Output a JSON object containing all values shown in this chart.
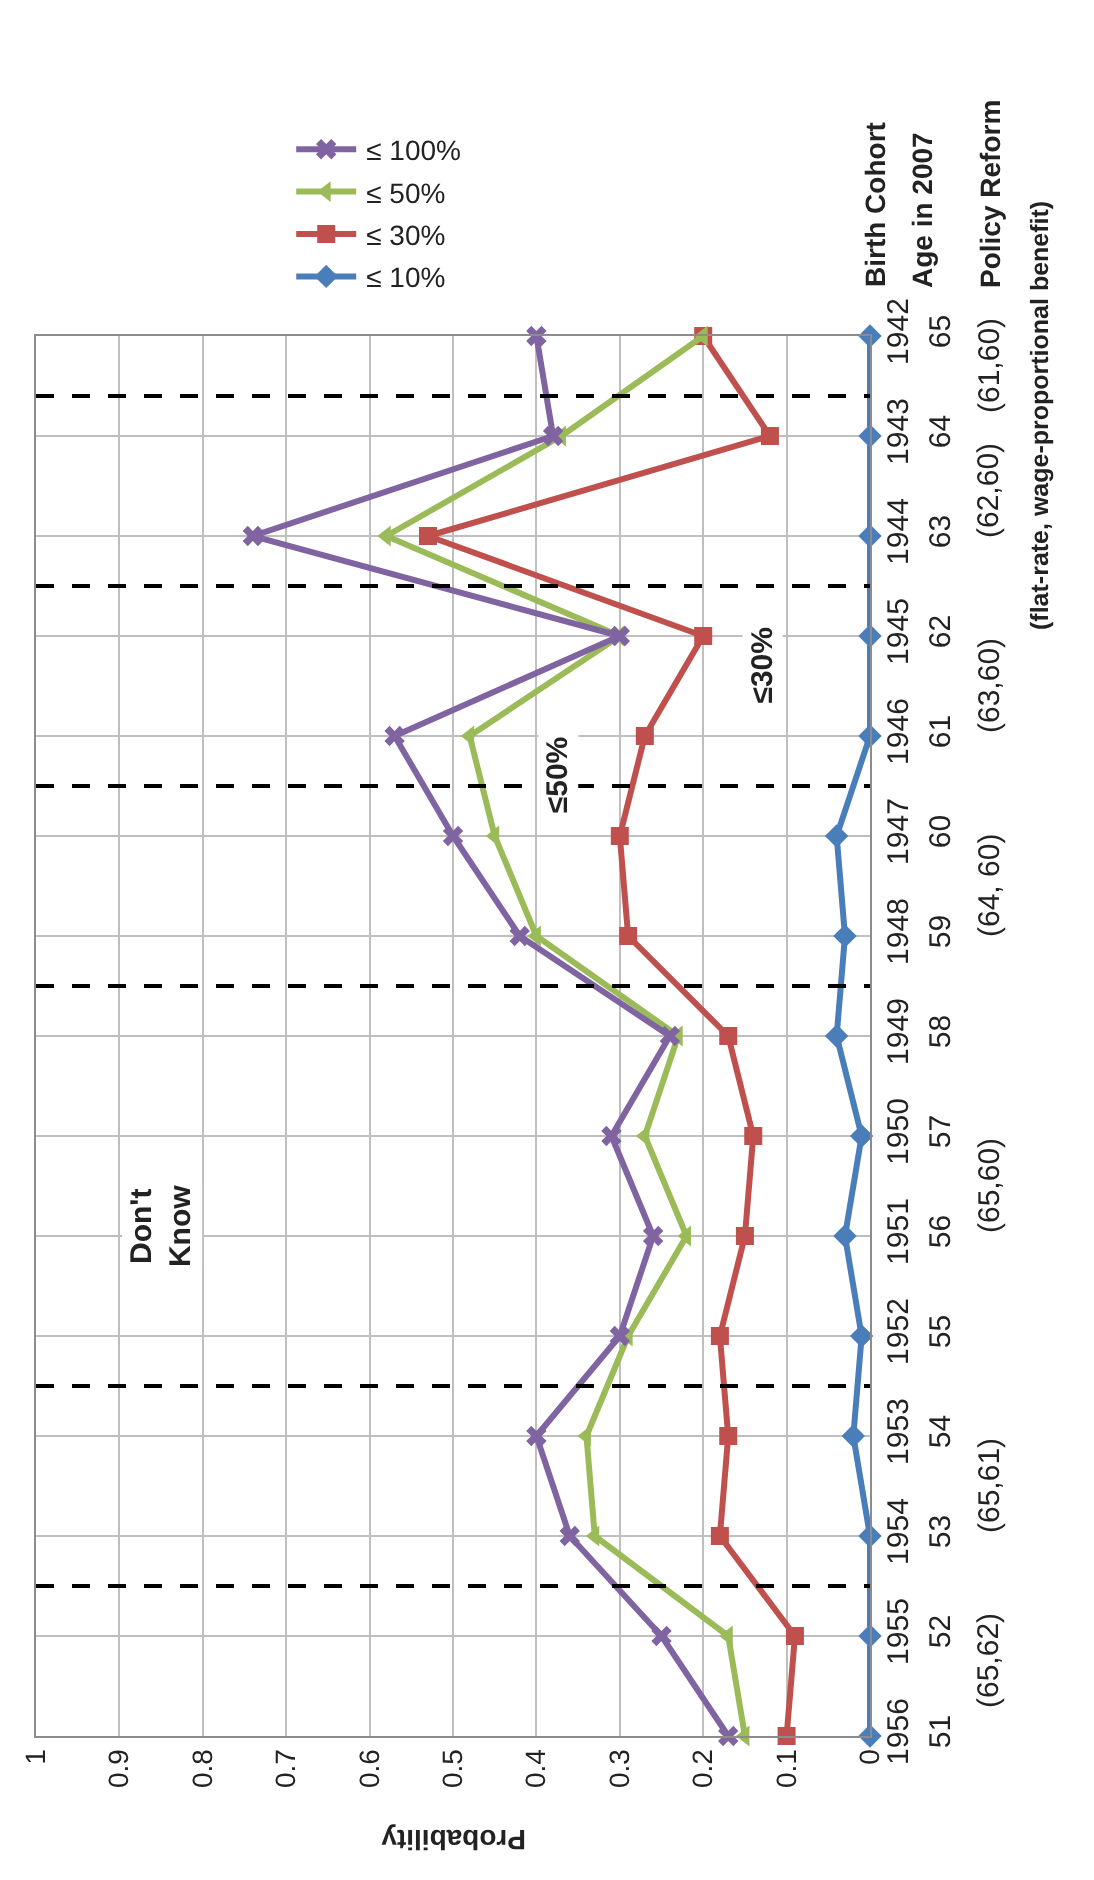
{
  "chart_data": {
    "type": "line",
    "orientation": "horizontal",
    "x": [
      1956,
      1955,
      1954,
      1953,
      1952,
      1951,
      1950,
      1949,
      1948,
      1947,
      1946,
      1945,
      1944,
      1943,
      1942
    ],
    "ylim": [
      1956,
      1942
    ],
    "yticks": [
      1956,
      1955,
      1954,
      1953,
      1952,
      1951,
      1950,
      1949,
      1948,
      1947,
      1946,
      1945,
      1944,
      1943,
      1942
    ],
    "y2lim": [
      51,
      65
    ],
    "y2ticks": [
      51,
      52,
      53,
      54,
      55,
      56,
      57,
      58,
      59,
      60,
      61,
      62,
      63,
      64,
      65
    ],
    "ylabel": "Birth Cohort",
    "y2label": "Age in 2007",
    "xlabel": "Probability",
    "xlim": [
      1,
      0
    ],
    "xticks": [
      0,
      0.1,
      0.2,
      0.3,
      0.4,
      0.5,
      0.6,
      0.7,
      0.8,
      0.9,
      1
    ],
    "grid": true,
    "legend": "top left",
    "series": [
      {
        "name": "≤ 10%",
        "color": "#4a7ebb",
        "marker": "diamond",
        "values": [
          0,
          0,
          0,
          0.02,
          0.01,
          0.03,
          0.01,
          0.04,
          0.03,
          0.04,
          0,
          0,
          0,
          0,
          0
        ]
      },
      {
        "name": "≤ 30%",
        "color": "#c0504d",
        "marker": "square",
        "values": [
          0.1,
          0.09,
          0.18,
          0.17,
          0.18,
          0.15,
          0.14,
          0.17,
          0.29,
          0.3,
          0.27,
          0.2,
          0.53,
          0.12,
          0.2
        ]
      },
      {
        "name": "≤ 50%",
        "color": "#9bbb59",
        "marker": "triangle",
        "values": [
          0.15,
          0.17,
          0.33,
          0.34,
          0.29,
          0.22,
          0.27,
          0.23,
          0.4,
          0.45,
          0.48,
          0.3,
          0.58,
          0.37,
          0.2
        ]
      },
      {
        "name": "≤ 100%",
        "color": "#8064a2",
        "marker": "cross",
        "values": [
          0.17,
          0.25,
          0.36,
          0.4,
          0.3,
          0.26,
          0.31,
          0.24,
          0.42,
          0.5,
          0.57,
          0.3,
          0.74,
          0.38,
          0.4
        ]
      }
    ],
    "ref_lines": [
      {
        "axis": "y",
        "value": 1954.5,
        "color": "#000000",
        "line_style": "dashed"
      },
      {
        "axis": "y",
        "value": 1952.5,
        "color": "#000000",
        "line_style": "dashed"
      },
      {
        "axis": "y",
        "value": 1948.5,
        "color": "#000000",
        "line_style": "dashed"
      },
      {
        "axis": "y",
        "value": 1946.5,
        "color": "#000000",
        "line_style": "dashed"
      },
      {
        "axis": "y",
        "value": 1944.5,
        "color": "#000000",
        "line_style": "dashed"
      },
      {
        "axis": "y",
        "value": 1942.6,
        "color": "#000000",
        "line_style": "dashed"
      }
    ],
    "annotations": [
      "(65,62)",
      "(65,61)",
      "(65,60)",
      "(64, 60)",
      "(63,60)",
      "(62,60)",
      "(61,60)",
      "Policy Reform\n(flat-rate, wage-proportional benefit)",
      {
        "text": "Don't\nKnow",
        "x": 0.85,
        "y": 1950.9
      },
      {
        "text": "≤50%",
        "x": 0.375,
        "y": 1946.4
      },
      {
        "text": "≤30%",
        "x": 0.13,
        "y": 1945.3
      }
    ]
  }
}
